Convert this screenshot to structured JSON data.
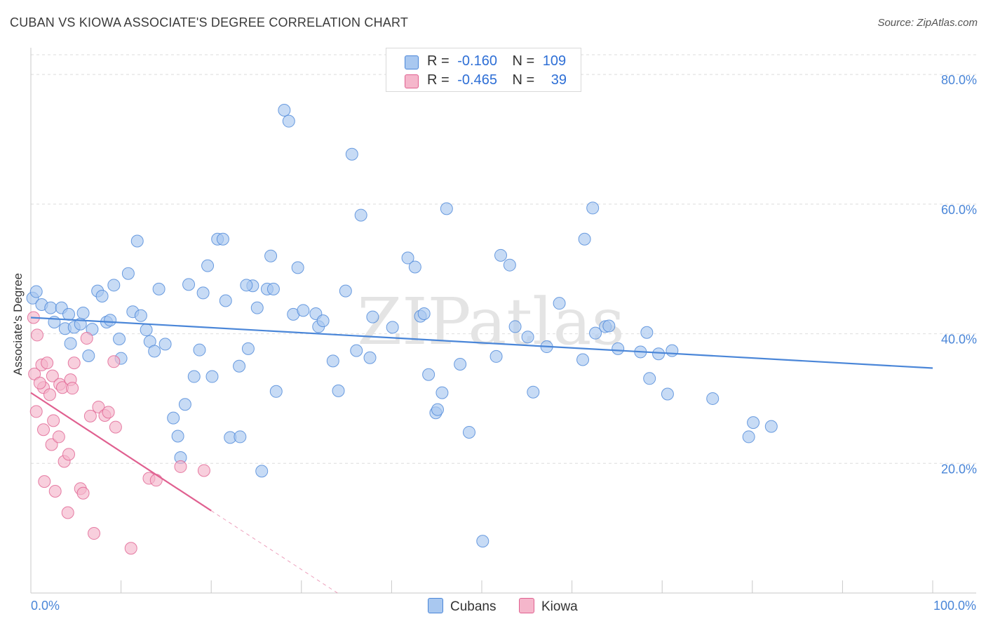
{
  "title": "CUBAN VS KIOWA ASSOCIATE'S DEGREE CORRELATION CHART",
  "source": "Source: ZipAtlas.com",
  "watermark": "ZIPatlas",
  "legend": {
    "rows": [
      {
        "r_label": "R =",
        "r_value": "-0.160",
        "n_label": "N =",
        "n_value": "109",
        "color": "#a9c8f0"
      },
      {
        "r_label": "R =",
        "r_value": "-0.465",
        "n_label": "N =",
        "n_value": "39",
        "color": "#f5b6cb"
      }
    ]
  },
  "bottom_legend": [
    {
      "label": "Cubans",
      "color": "#a9c8f0"
    },
    {
      "label": "Kiowa",
      "color": "#f5b6cb"
    }
  ],
  "chart_data": {
    "type": "scatter",
    "title": "CUBAN VS KIOWA ASSOCIATE'S DEGREE CORRELATION CHART",
    "xlabel": "",
    "ylabel": "Associate's Degree",
    "xlim": [
      0,
      100
    ],
    "ylim": [
      0,
      85
    ],
    "x_tick_labels": [
      "0.0%",
      "100.0%"
    ],
    "y_ticks": [
      20,
      40,
      60,
      80
    ],
    "y_tick_labels": [
      "20.0%",
      "40.0%",
      "60.0%",
      "80.0%"
    ],
    "grid": true,
    "series": [
      {
        "name": "Cubans",
        "color": "#4a86d8",
        "fill": "#a9c8f0",
        "trend": {
          "x": [
            0,
            100
          ],
          "y": [
            42.5,
            34.7
          ]
        },
        "points": [
          [
            0.2,
            45.5
          ],
          [
            0.6,
            46.5
          ],
          [
            1.2,
            44.5
          ],
          [
            2.2,
            44
          ],
          [
            2.6,
            41.8
          ],
          [
            3.4,
            44
          ],
          [
            3.8,
            40.8
          ],
          [
            4.2,
            43
          ],
          [
            4.4,
            38.5
          ],
          [
            4.8,
            41
          ],
          [
            5.5,
            41.5
          ],
          [
            5.8,
            43.2
          ],
          [
            6.4,
            36.6
          ],
          [
            6.8,
            40.7
          ],
          [
            7.4,
            46.6
          ],
          [
            7.9,
            45.8
          ],
          [
            8.4,
            41.8
          ],
          [
            8.8,
            42.1
          ],
          [
            9.2,
            47.5
          ],
          [
            9.8,
            39.2
          ],
          [
            10.0,
            36.2
          ],
          [
            10.8,
            49.3
          ],
          [
            11.3,
            43.4
          ],
          [
            11.8,
            54.3
          ],
          [
            12.2,
            42.8
          ],
          [
            12.8,
            40.6
          ],
          [
            13.2,
            38.8
          ],
          [
            13.7,
            37.3
          ],
          [
            14.2,
            46.9
          ],
          [
            14.9,
            38.4
          ],
          [
            15.8,
            27
          ],
          [
            16.3,
            24.2
          ],
          [
            16.6,
            20.9
          ],
          [
            17.1,
            29.1
          ],
          [
            17.5,
            47.6
          ],
          [
            18.1,
            33.4
          ],
          [
            18.7,
            37.5
          ],
          [
            19.1,
            46.3
          ],
          [
            19.6,
            50.5
          ],
          [
            20.1,
            33.4
          ],
          [
            20.7,
            54.6
          ],
          [
            21.3,
            54.6
          ],
          [
            21.6,
            45.1
          ],
          [
            22.1,
            24
          ],
          [
            23.2,
            24.1
          ],
          [
            23.1,
            35
          ],
          [
            24.1,
            37.7
          ],
          [
            24.6,
            47.4
          ],
          [
            25.1,
            44
          ],
          [
            25.6,
            18.8
          ],
          [
            26.2,
            46.9
          ],
          [
            26.6,
            52
          ],
          [
            27.2,
            31.1
          ],
          [
            28.1,
            74.5
          ],
          [
            28.6,
            72.8
          ],
          [
            29.1,
            43
          ],
          [
            29.6,
            50.2
          ],
          [
            30.2,
            43.6
          ],
          [
            31.6,
            43.1
          ],
          [
            31.9,
            41.1
          ],
          [
            32.4,
            42
          ],
          [
            33.5,
            35.8
          ],
          [
            34.1,
            31.2
          ],
          [
            34.9,
            46.6
          ],
          [
            35.6,
            67.7
          ],
          [
            36.1,
            37.4
          ],
          [
            36.6,
            58.3
          ],
          [
            37.6,
            36.3
          ],
          [
            37.9,
            42.6
          ],
          [
            40.1,
            41
          ],
          [
            41.8,
            51.7
          ],
          [
            42.6,
            50.3
          ],
          [
            43.2,
            42.7
          ],
          [
            43.6,
            43.1
          ],
          [
            44.1,
            33.7
          ],
          [
            44.9,
            27.8
          ],
          [
            45.1,
            28.3
          ],
          [
            45.6,
            30.9
          ],
          [
            46.1,
            59.3
          ],
          [
            47.6,
            35.3
          ],
          [
            48.6,
            24.8
          ],
          [
            50.1,
            8
          ],
          [
            51.6,
            36.5
          ],
          [
            52.1,
            52.1
          ],
          [
            53.1,
            50.6
          ],
          [
            53.7,
            41.1
          ],
          [
            55.1,
            39.5
          ],
          [
            55.7,
            31
          ],
          [
            57.2,
            38
          ],
          [
            58.6,
            44.7
          ],
          [
            61.2,
            36
          ],
          [
            61.4,
            54.6
          ],
          [
            62.3,
            59.4
          ],
          [
            62.6,
            40.1
          ],
          [
            63.7,
            41.1
          ],
          [
            64.1,
            41.2
          ],
          [
            65.1,
            37.7
          ],
          [
            67.6,
            37.2
          ],
          [
            68.3,
            40.2
          ],
          [
            68.6,
            33.1
          ],
          [
            69.6,
            36.9
          ],
          [
            70.6,
            30.7
          ],
          [
            71.1,
            37.4
          ],
          [
            75.6,
            30
          ],
          [
            79.6,
            24.1
          ],
          [
            80.1,
            26.3
          ],
          [
            82.1,
            25.7
          ],
          [
            26.9,
            46.9
          ],
          [
            23.9,
            47.5
          ]
        ]
      },
      {
        "name": "Kiowa",
        "color": "#e06090",
        "fill": "#f5b6cb",
        "trend": {
          "x": [
            0,
            20
          ],
          "y": [
            30.9,
            12.7
          ]
        },
        "trend_ext": {
          "x": [
            20,
            34
          ],
          "y": [
            12.7,
            0
          ]
        },
        "points": [
          [
            0.3,
            42.5
          ],
          [
            0.4,
            33.8
          ],
          [
            0.6,
            28
          ],
          [
            0.7,
            39.8
          ],
          [
            1.2,
            35.2
          ],
          [
            1.4,
            31.7
          ],
          [
            1.5,
            17.2
          ],
          [
            1.4,
            25.2
          ],
          [
            1.8,
            35.5
          ],
          [
            2.1,
            30.6
          ],
          [
            2.4,
            33.5
          ],
          [
            2.5,
            26.6
          ],
          [
            2.3,
            22.9
          ],
          [
            2.7,
            15.7
          ],
          [
            3.1,
            24.1
          ],
          [
            3.2,
            32.2
          ],
          [
            3.5,
            31.7
          ],
          [
            3.7,
            20.3
          ],
          [
            4.1,
            12.4
          ],
          [
            4.2,
            21.4
          ],
          [
            4.4,
            32.9
          ],
          [
            4.6,
            31.6
          ],
          [
            4.8,
            35.5
          ],
          [
            5.5,
            16.1
          ],
          [
            5.8,
            15.4
          ],
          [
            6.2,
            39.3
          ],
          [
            6.6,
            27.3
          ],
          [
            7.0,
            9.2
          ],
          [
            7.5,
            28.7
          ],
          [
            8.2,
            27.4
          ],
          [
            8.6,
            27.9
          ],
          [
            9.2,
            35.7
          ],
          [
            9.4,
            25.6
          ],
          [
            11.1,
            6.9
          ],
          [
            13.1,
            17.7
          ],
          [
            13.9,
            17.4
          ],
          [
            16.6,
            19.5
          ],
          [
            19.2,
            18.9
          ],
          [
            1.0,
            32.4
          ]
        ]
      }
    ]
  }
}
